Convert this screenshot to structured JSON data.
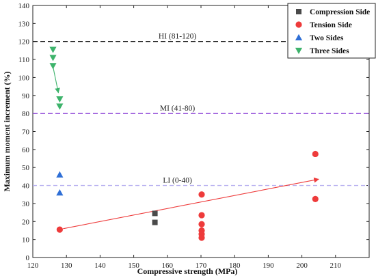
{
  "chart_data": {
    "type": "scatter",
    "xlabel": "Compressive strength (MPa)",
    "ylabel": "Maximum moment increment (%)",
    "xlim": [
      120,
      220
    ],
    "ylim": [
      0,
      140
    ],
    "xticks": [
      120,
      130,
      140,
      150,
      160,
      170,
      180,
      190,
      200,
      210
    ],
    "yticks": [
      0,
      10,
      20,
      30,
      40,
      50,
      60,
      70,
      80,
      90,
      100,
      110,
      120,
      130,
      140
    ],
    "grid": false,
    "legend_position": "top-right",
    "series": [
      {
        "name": "Compression Side",
        "marker": "square",
        "color": "#4a4a4a",
        "points": [
          [
            156.3,
            24.5
          ],
          [
            156.3,
            19.5
          ]
        ]
      },
      {
        "name": "Tension Side",
        "marker": "circle",
        "color": "#ee3b3b",
        "points": [
          [
            128,
            15.5
          ],
          [
            170.2,
            35
          ],
          [
            170.2,
            23.5
          ],
          [
            170.2,
            18.5
          ],
          [
            170.2,
            15
          ],
          [
            170.2,
            13
          ],
          [
            170.2,
            11
          ],
          [
            204,
            57.5
          ],
          [
            204,
            32.5
          ]
        ]
      },
      {
        "name": "Two Sides",
        "marker": "triangle-up",
        "color": "#2f6fd6",
        "points": [
          [
            128,
            46
          ],
          [
            128,
            36
          ]
        ]
      },
      {
        "name": "Three Sides",
        "marker": "triangle-down",
        "color": "#3db36b",
        "points": [
          [
            126,
            115.5
          ],
          [
            126,
            111
          ],
          [
            126,
            106.5
          ],
          [
            128,
            88
          ],
          [
            128,
            84
          ]
        ]
      }
    ],
    "reference_lines": [
      {
        "y": 120,
        "label": "HI (81-120)",
        "label_x": 163,
        "color": "#111111",
        "dash": "7,4"
      },
      {
        "y": 80,
        "label": "MI (41-80)",
        "label_x": 163,
        "color": "#8a3fd6",
        "dash": "7,4"
      },
      {
        "y": 40,
        "label": "LI (0-40)",
        "label_x": 163,
        "color": "#b8b0f0",
        "dash": "6,4"
      }
    ],
    "annotations": [
      {
        "type": "arrow",
        "from": [
          126,
          106
        ],
        "to": [
          127.6,
          91.5
        ],
        "color": "#3db36b"
      },
      {
        "type": "arrow",
        "from": [
          129,
          16
        ],
        "to": [
          205,
          43.5
        ],
        "color": "#ee3b3b"
      }
    ]
  }
}
